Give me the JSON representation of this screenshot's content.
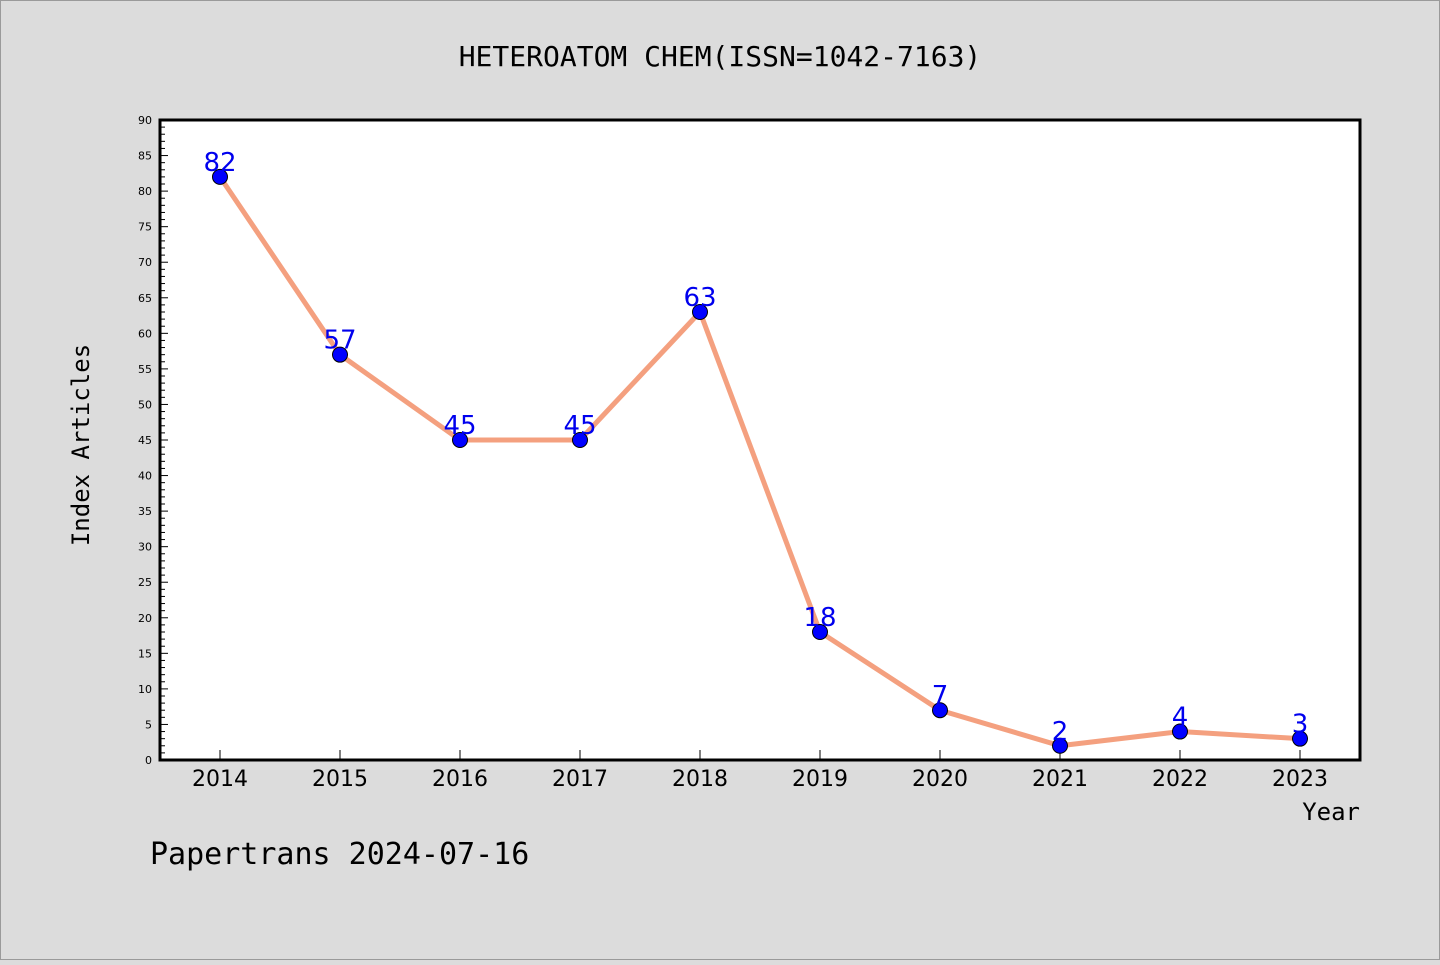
{
  "chart_data": {
    "type": "line",
    "title": "HETEROATOM CHEM(ISSN=1042-7163)",
    "xlabel": "Year",
    "ylabel": "Index Articles",
    "categories": [
      "2014",
      "2015",
      "2016",
      "2017",
      "2018",
      "2019",
      "2020",
      "2021",
      "2022",
      "2023"
    ],
    "values": [
      82,
      57,
      45,
      45,
      63,
      18,
      7,
      2,
      4,
      3
    ],
    "ylim": [
      0,
      90
    ],
    "ytick_step": 5,
    "yticks": [
      "0",
      "5",
      "10",
      "15",
      "20",
      "25",
      "30",
      "35",
      "40",
      "45",
      "50",
      "55",
      "60",
      "65",
      "70",
      "75",
      "80",
      "85",
      "90"
    ],
    "data_labels": [
      "82",
      "57",
      "45",
      "45",
      "63",
      "18",
      "7",
      "2",
      "4",
      "3"
    ],
    "grid": false,
    "legend": "none",
    "line_color": "#f4a07f",
    "marker_color": "#0000ff",
    "label_color": "#0000ee"
  },
  "footer": {
    "text": "Papertrans 2024-07-16"
  }
}
